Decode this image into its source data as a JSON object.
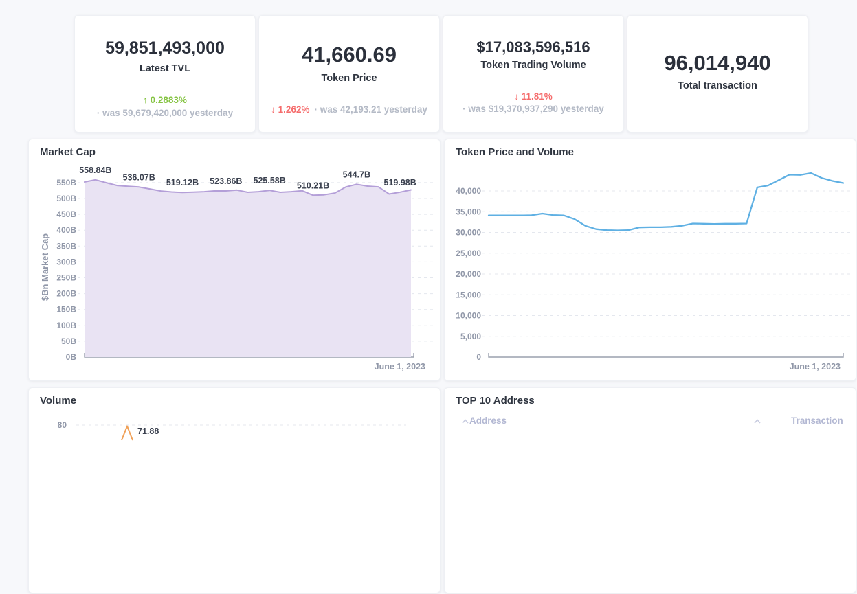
{
  "page": {
    "background": "#f7f8fb"
  },
  "stat_cards": [
    {
      "value": "59,851,493,000",
      "label": "Latest TVL",
      "change_arrow": "↑",
      "change_text": "0.2883%",
      "change_dir": "up",
      "was_text": "· was 59,679,420,000 yesterday"
    },
    {
      "value": "41,660.69",
      "label": "Token Price",
      "change_arrow": "↓",
      "change_text": "1.262%",
      "change_dir": "down",
      "was_text": "· was 42,193.21 yesterday"
    },
    {
      "value": "$17,083,596,516",
      "label": "Token Trading Volume",
      "change_arrow": "↓",
      "change_text": "11.81%",
      "change_dir": "down",
      "was_text": "· was $19,370,937,290 yesterday"
    },
    {
      "value": "96,014,940",
      "label": "Total transaction",
      "change_arrow": "",
      "change_text": "",
      "change_dir": "none",
      "was_text": ""
    }
  ],
  "colors": {
    "up_green": "#84c341",
    "down_red": "#f56c6c",
    "muted_gray": "#b4bac6",
    "dark_text": "#2b303b",
    "axis_gray": "#9097a8",
    "market_line": "#b49fd8",
    "market_fill": "#e9e3f3",
    "token_line": "#5fb0e3",
    "volume_line": "#f0a057",
    "table_header": "#b3b8d3"
  },
  "chart_data": [
    {
      "id": "market_cap",
      "type": "area",
      "title": "Market Cap",
      "ylabel": "$Bn Market Cap",
      "xlabel": "June 1, 2023",
      "ylim": [
        0,
        580
      ],
      "ytick_step": 50,
      "yticks": [
        "0B",
        "50B",
        "100B",
        "150B",
        "200B",
        "250B",
        "300B",
        "350B",
        "400B",
        "450B",
        "500B",
        "550B"
      ],
      "grid": true,
      "values": [
        552,
        558.84,
        549.5,
        541,
        538.5,
        536.07,
        530,
        523.5,
        520.5,
        519.12,
        520,
        521.5,
        524,
        523.86,
        526.5,
        519.5,
        521.5,
        525.58,
        519.5,
        521.5,
        524.5,
        510.21,
        511.5,
        517,
        536,
        544.7,
        539,
        536.5,
        514,
        519.98,
        527
      ],
      "point_labels": {
        "1": "558.84B",
        "5": "536.07B",
        "9": "519.12B",
        "13": "523.86B",
        "17": "525.58B",
        "21": "510.21B",
        "25": "544.7B",
        "29": "519.98B"
      }
    },
    {
      "id": "token_price",
      "type": "line",
      "title": "Token Price and Volume",
      "xlabel": "June 1, 2023",
      "ylim": [
        0,
        46000
      ],
      "ytick_step": 5000,
      "yticks": [
        "0",
        "5,000",
        "10,000",
        "15,000",
        "20,000",
        "25,000",
        "30,000",
        "35,000",
        "40,000"
      ],
      "grid": true,
      "values": [
        34100,
        34100,
        34100,
        34100,
        34150,
        34550,
        34200,
        34100,
        33200,
        31600,
        30800,
        30550,
        30500,
        30550,
        31200,
        31250,
        31250,
        31350,
        31600,
        32150,
        32100,
        32050,
        32100,
        32100,
        32150,
        40850,
        41300,
        42600,
        43900,
        43850,
        44300,
        43100,
        42400,
        41900
      ]
    },
    {
      "id": "volume",
      "type": "line",
      "title": "Volume",
      "yticks": [
        "80"
      ],
      "visible_peak_label": "71.88",
      "visible_peak_value": 71.88,
      "grid": true
    }
  ],
  "table": {
    "title": "TOP 10 Address",
    "columns": [
      {
        "label": "Address"
      },
      {
        "label": "Transaction"
      }
    ]
  }
}
